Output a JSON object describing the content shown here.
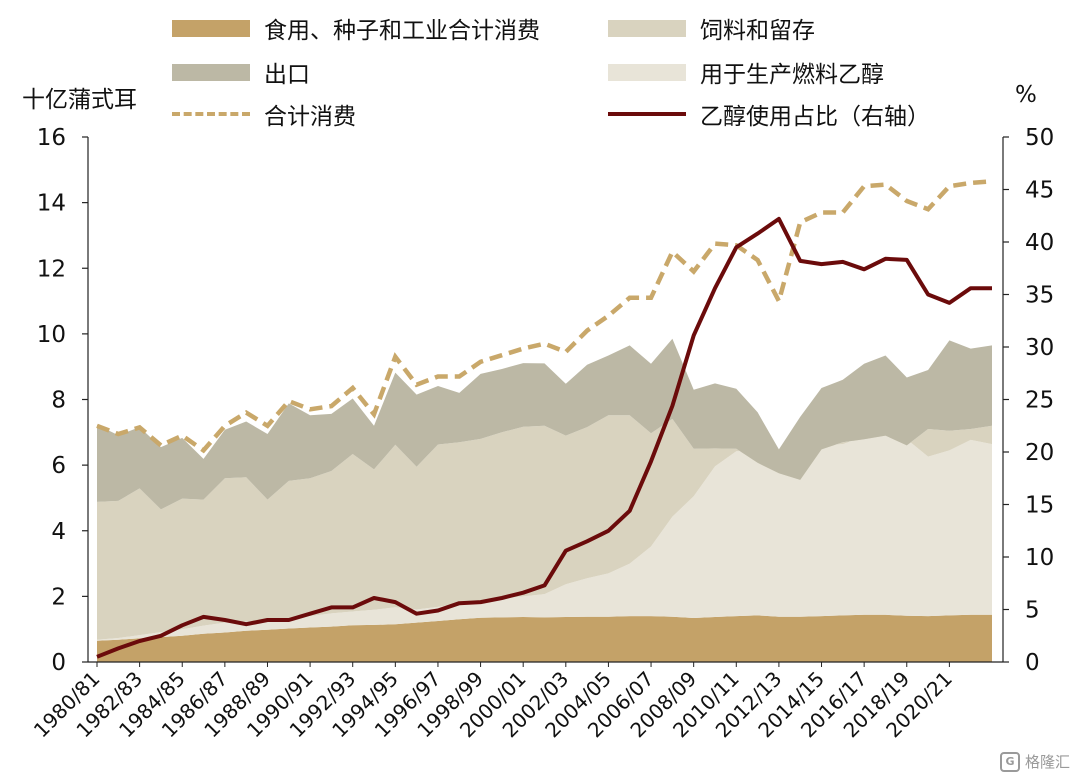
{
  "legend": {
    "food_seed_industrial": "食用、种子和工业合计消费",
    "feed_residual": "饲料和留存",
    "exports": "出口",
    "fuel_ethanol": "用于生产燃料乙醇",
    "total_consumption": "合计消费",
    "ethanol_share": "乙醇使用占比（右轴）"
  },
  "units": {
    "left": "十亿蒲式耳",
    "right": "%"
  },
  "watermark": "格隆汇",
  "colors": {
    "food_seed_industrial": "#c4a268",
    "fuel_ethanol": "#e8e4d8",
    "feed_residual": "#d9d3bf",
    "exports": "#bcb8a5",
    "total_consumption": "#c9a86a",
    "ethanol_share": "#6b0b0b"
  },
  "chart_data": {
    "type": "area",
    "title": "",
    "xlabel": "",
    "ylabel": "十亿蒲式耳",
    "y2label": "%",
    "ylim": [
      0,
      16
    ],
    "y2lim": [
      0,
      50
    ],
    "yticks": [
      0,
      2,
      4,
      6,
      8,
      10,
      12,
      14,
      16
    ],
    "y2ticks": [
      0,
      5,
      10,
      15,
      20,
      25,
      30,
      35,
      40,
      45,
      50
    ],
    "x": [
      "1980/81",
      "1981/82",
      "1982/83",
      "1983/84",
      "1984/85",
      "1985/86",
      "1986/87",
      "1987/88",
      "1988/89",
      "1989/90",
      "1990/91",
      "1991/92",
      "1992/93",
      "1993/94",
      "1994/95",
      "1995/96",
      "1996/97",
      "1997/98",
      "1998/99",
      "1999/00",
      "2000/01",
      "2001/02",
      "2002/03",
      "2003/04",
      "2004/05",
      "2005/06",
      "2006/07",
      "2007/08",
      "2008/09",
      "2009/10",
      "2010/11",
      "2011/12",
      "2012/13",
      "2013/14",
      "2014/15",
      "2015/16",
      "2016/17",
      "2017/18",
      "2018/19",
      "2019/20",
      "2020/21",
      "2021/22",
      "2022/23"
    ],
    "xtick_labels": [
      "1980/81",
      "1982/83",
      "1984/85",
      "1986/87",
      "1988/89",
      "1990/91",
      "1992/93",
      "1994/95",
      "1996/97",
      "1998/99",
      "2000/01",
      "2002/03",
      "2004/05",
      "2006/07",
      "2008/09",
      "2010/11",
      "2012/13",
      "2014/15",
      "2016/17",
      "2018/19",
      "2020/21"
    ],
    "series": [
      {
        "name": "食用、种子和工业合计消费",
        "type": "area",
        "axis": "left",
        "values": [
          0.65,
          0.68,
          0.72,
          0.76,
          0.8,
          0.86,
          0.9,
          0.95,
          0.98,
          1.02,
          1.05,
          1.08,
          1.12,
          1.13,
          1.15,
          1.2,
          1.25,
          1.3,
          1.35,
          1.36,
          1.37,
          1.36,
          1.37,
          1.38,
          1.38,
          1.4,
          1.4,
          1.38,
          1.34,
          1.37,
          1.4,
          1.42,
          1.38,
          1.38,
          1.4,
          1.42,
          1.44,
          1.44,
          1.41,
          1.4,
          1.42,
          1.44,
          1.44
        ]
      },
      {
        "name": "用于生产燃料乙醇",
        "type": "area",
        "axis": "left",
        "values": [
          0.03,
          0.05,
          0.1,
          0.15,
          0.2,
          0.25,
          0.3,
          0.28,
          0.3,
          0.3,
          0.35,
          0.4,
          0.42,
          0.46,
          0.52,
          0.4,
          0.43,
          0.48,
          0.53,
          0.57,
          0.63,
          0.71,
          1.0,
          1.17,
          1.32,
          1.6,
          2.12,
          3.05,
          3.71,
          4.59,
          5.02,
          5.0,
          4.64,
          5.12,
          5.2,
          5.22,
          5.43,
          5.6,
          5.38,
          4.86,
          5.03,
          5.33,
          5.2
        ]
      },
      {
        "name": "饲料和留存",
        "type": "area",
        "axis": "left",
        "values": [
          4.2,
          4.18,
          4.47,
          3.74,
          3.98,
          3.84,
          4.4,
          4.4,
          3.67,
          4.2,
          4.2,
          4.34,
          4.8,
          4.28,
          4.95,
          4.35,
          4.95,
          4.92,
          4.92,
          5.07,
          5.17,
          5.13,
          4.53,
          4.61,
          4.82,
          4.52,
          3.45,
          2.98,
          1.45,
          0.55,
          0.08,
          -0.35,
          -0.27,
          -0.95,
          -0.12,
          0.06,
          -0.08,
          -0.14,
          -0.19,
          0.84,
          0.6,
          0.33,
          0.56
        ]
      },
      {
        "name": "出口",
        "type": "area",
        "axis": "left",
        "values": [
          2.35,
          2.0,
          1.87,
          1.9,
          1.85,
          1.24,
          1.48,
          1.7,
          2.0,
          2.36,
          1.92,
          1.74,
          1.69,
          1.33,
          2.2,
          2.2,
          1.78,
          1.5,
          1.98,
          1.93,
          1.94,
          1.9,
          1.58,
          1.9,
          1.82,
          2.13,
          2.12,
          2.44,
          1.8,
          1.98,
          1.83,
          1.54,
          0.73,
          1.92,
          1.87,
          1.9,
          2.3,
          2.44,
          2.07,
          1.8,
          2.75,
          2.45,
          2.45
        ]
      },
      {
        "name": "合计消费",
        "type": "line",
        "axis": "left",
        "values": [
          7.2,
          6.95,
          7.15,
          6.6,
          6.9,
          6.45,
          7.2,
          7.6,
          7.2,
          7.95,
          7.7,
          7.8,
          8.35,
          7.55,
          9.3,
          8.45,
          8.7,
          8.7,
          9.15,
          9.35,
          9.55,
          9.7,
          9.45,
          10.1,
          10.55,
          11.1,
          11.1,
          12.5,
          11.9,
          12.75,
          12.7,
          12.25,
          11.0,
          13.4,
          13.7,
          13.7,
          14.5,
          14.55,
          14.05,
          13.8,
          14.5,
          14.6,
          14.65
        ]
      },
      {
        "name": "乙醇使用占比（右轴）",
        "type": "line",
        "axis": "right",
        "values": [
          0.5,
          1.3,
          2.0,
          2.5,
          3.5,
          4.3,
          4.0,
          3.6,
          4.0,
          4.0,
          4.6,
          5.2,
          5.2,
          6.1,
          5.7,
          4.6,
          4.9,
          5.6,
          5.7,
          6.1,
          6.6,
          7.3,
          10.6,
          11.5,
          12.5,
          14.4,
          19.1,
          24.4,
          31.1,
          35.6,
          39.5,
          40.8,
          42.2,
          38.2,
          37.9,
          38.1,
          37.4,
          38.4,
          38.3,
          35.0,
          34.2,
          35.6,
          35.6
        ]
      }
    ]
  }
}
